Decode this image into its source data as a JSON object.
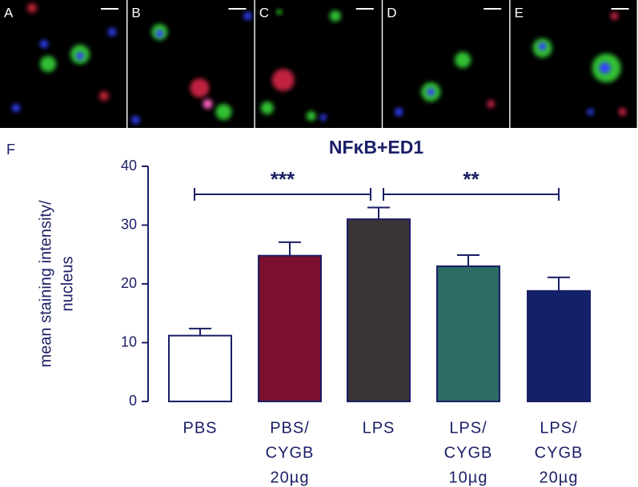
{
  "panels": [
    "A",
    "B",
    "C",
    "D",
    "E"
  ],
  "chart_data": {
    "type": "bar",
    "figure_label": "F",
    "title": "NFκB+ED1",
    "ylabel": [
      "mean staining intensity/",
      "nucleus"
    ],
    "categories": [
      [
        "PBS"
      ],
      [
        "PBS/",
        "CYGB",
        "20µg"
      ],
      [
        "LPS"
      ],
      [
        "LPS/",
        "CYGB",
        "10µg"
      ],
      [
        "LPS/",
        "CYGB",
        "20µg"
      ]
    ],
    "values": [
      11.2,
      24.8,
      31.0,
      23.0,
      18.8
    ],
    "errors": [
      1.2,
      2.3,
      2.0,
      1.9,
      2.3
    ],
    "colors": [
      "#ffffff",
      "#7b0f2e",
      "#3b3435",
      "#2b6b64",
      "#13206a"
    ],
    "edge_color": "#1b1f66",
    "ylim": [
      0,
      40
    ],
    "yticks": [
      0,
      10,
      20,
      30,
      40
    ],
    "annotations": [
      {
        "label": "***",
        "from": 0,
        "to": 2
      },
      {
        "label": "**",
        "from": 2,
        "to": 4
      }
    ]
  }
}
